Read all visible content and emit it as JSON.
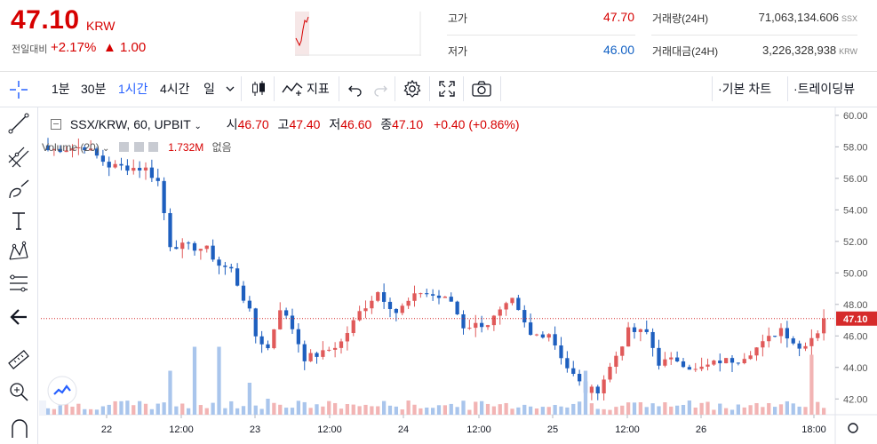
{
  "ticker": {
    "price": "47.10",
    "unit": "KRW",
    "change_label": "전일대비",
    "change_pct": "+2.17%",
    "change_abs": "▲ 1.00"
  },
  "stats": {
    "high_label": "고가",
    "high_value": "47.70",
    "low_label": "저가",
    "low_value": "46.00",
    "vol_label": "거래량(24H)",
    "vol_value": "71,063,134.606",
    "vol_unit": "SSX",
    "amt_label": "거래대금(24H)",
    "amt_value": "3,226,328,938",
    "amt_unit": "KRW"
  },
  "toolbar": {
    "intervals": [
      "1분",
      "30분",
      "1시간",
      "4시간",
      "일"
    ],
    "indicators_label": "지표",
    "basic_chart_label": "기본 차트",
    "tradingview_label": "트레이딩뷰"
  },
  "legend": {
    "symbol": "SSX/KRW, 60, UPBIT",
    "o_label": "시",
    "o_value": "46.70",
    "h_label": "고",
    "h_value": "47.40",
    "l_label": "저",
    "l_value": "46.60",
    "c_label": "종",
    "c_value": "47.10",
    "change": "+0.40 (+0.86%)"
  },
  "volume_legend": {
    "label": "Volume (20)",
    "value": "1.732M",
    "extra": "없음"
  },
  "colors": {
    "up": "#e05a5a",
    "down": "#1e5fbf",
    "vol_up": "#f2b4b4",
    "vol_down": "#a9c5ec",
    "price_tag": "#d62b2b"
  },
  "chart_data": {
    "type": "candlestick",
    "ylim": [
      41,
      60.5
    ],
    "y_ticks": [
      "60.00",
      "58.00",
      "56.00",
      "54.00",
      "52.00",
      "50.00",
      "48.00",
      "46.00",
      "44.00",
      "42.00"
    ],
    "x_ticks": [
      "22",
      "12:00",
      "23",
      "12:00",
      "24",
      "12:00",
      "25",
      "12:00",
      "26",
      "18:00"
    ],
    "last_price": "47.10",
    "anchors": [
      {
        "i": 0,
        "v": 57.8
      },
      {
        "i": 6,
        "v": 58.0
      },
      {
        "i": 10,
        "v": 56.8
      },
      {
        "i": 16,
        "v": 56.6
      },
      {
        "i": 18,
        "v": 55.8
      },
      {
        "i": 20,
        "v": 51.8
      },
      {
        "i": 26,
        "v": 51.5
      },
      {
        "i": 28,
        "v": 50.5
      },
      {
        "i": 30,
        "v": 50.2
      },
      {
        "i": 33,
        "v": 47.5
      },
      {
        "i": 34,
        "v": 46.0
      },
      {
        "i": 36,
        "v": 45.2
      },
      {
        "i": 38,
        "v": 47.8
      },
      {
        "i": 40,
        "v": 46.5
      },
      {
        "i": 42,
        "v": 44.6
      },
      {
        "i": 45,
        "v": 44.9
      },
      {
        "i": 48,
        "v": 45.6
      },
      {
        "i": 51,
        "v": 47.5
      },
      {
        "i": 54,
        "v": 48.8
      },
      {
        "i": 57,
        "v": 47.5
      },
      {
        "i": 61,
        "v": 48.8
      },
      {
        "i": 66,
        "v": 48.2
      },
      {
        "i": 68,
        "v": 46.6
      },
      {
        "i": 72,
        "v": 46.8
      },
      {
        "i": 76,
        "v": 48.2
      },
      {
        "i": 79,
        "v": 46.0
      },
      {
        "i": 82,
        "v": 46.2
      },
      {
        "i": 85,
        "v": 44.0
      },
      {
        "i": 88,
        "v": 42.5
      },
      {
        "i": 90,
        "v": 42.6
      },
      {
        "i": 92,
        "v": 44.0
      },
      {
        "i": 95,
        "v": 46.3
      },
      {
        "i": 98,
        "v": 46.2
      },
      {
        "i": 100,
        "v": 44.3
      },
      {
        "i": 103,
        "v": 44.5
      },
      {
        "i": 106,
        "v": 43.8
      },
      {
        "i": 110,
        "v": 44.4
      },
      {
        "i": 113,
        "v": 44.5
      },
      {
        "i": 117,
        "v": 45.5
      },
      {
        "i": 120,
        "v": 46.5
      },
      {
        "i": 123,
        "v": 45.2
      },
      {
        "i": 126,
        "v": 46.3
      },
      {
        "i": 127,
        "v": 47.1
      }
    ],
    "volume_spikes": [
      {
        "i": 20,
        "v": 0.55
      },
      {
        "i": 24,
        "v": 0.55
      },
      {
        "i": 28,
        "v": 0.85
      },
      {
        "i": 24,
        "v": 0.85
      },
      {
        "i": 33,
        "v": 0.4
      },
      {
        "i": 36,
        "v": 0.2
      },
      {
        "i": 88,
        "v": 0.55
      },
      {
        "i": 125,
        "v": 0.75
      }
    ]
  }
}
